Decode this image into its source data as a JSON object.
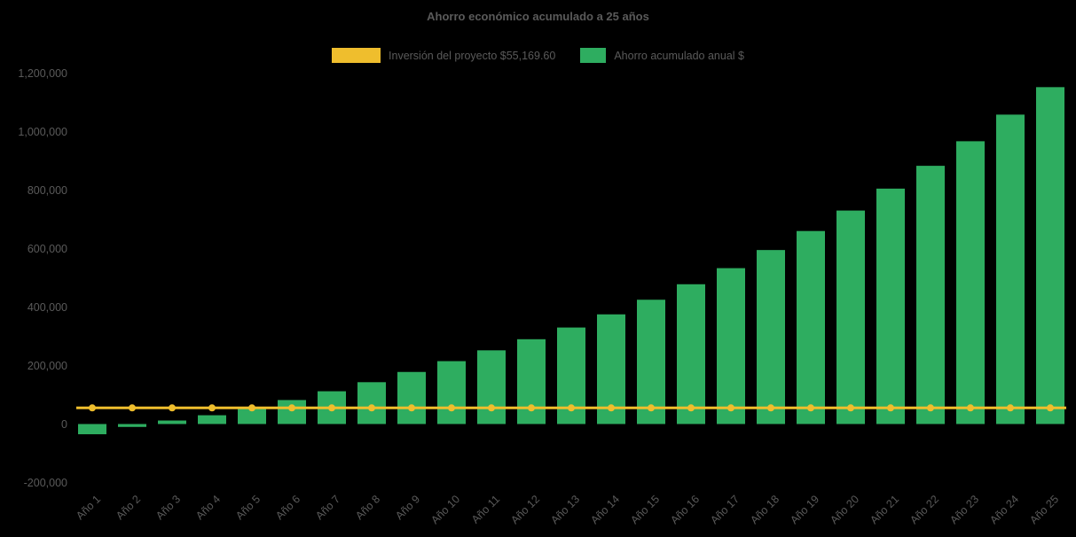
{
  "page": {
    "background": "#000000",
    "text_color": "#5a5a5a"
  },
  "chart_data": {
    "type": "bar",
    "title": "Ahorro económico acumulado a 25 años",
    "categories": [
      "Año 1",
      "Año 2",
      "Año 3",
      "Año 4",
      "Año 5",
      "Año 6",
      "Año 7",
      "Año 8",
      "Año 9",
      "Año 10",
      "Año 11",
      "Año 12",
      "Año 13",
      "Año 14",
      "Año 15",
      "Año 16",
      "Año 17",
      "Año 18",
      "Año 19",
      "Año 20",
      "Año 21",
      "Año 22",
      "Año 23",
      "Año 24",
      "Año 25"
    ],
    "series": [
      {
        "name": "Inversión del proyecto $55,169.60",
        "type": "line",
        "color": "#EFBE2D",
        "marker": "circle",
        "constant_value": 55169.6,
        "values": [
          55169.6,
          55169.6,
          55169.6,
          55169.6,
          55169.6,
          55169.6,
          55169.6,
          55169.6,
          55169.6,
          55169.6,
          55169.6,
          55169.6,
          55169.6,
          55169.6,
          55169.6,
          55169.6,
          55169.6,
          55169.6,
          55169.6,
          55169.6,
          55169.6,
          55169.6,
          55169.6,
          55169.6,
          55169.6
        ]
      },
      {
        "name": "Ahorro acumulado anual $",
        "type": "bar",
        "color": "#2EAD60",
        "values": [
          -35000,
          -10000,
          12000,
          30000,
          55000,
          82000,
          112000,
          143000,
          178000,
          215000,
          252000,
          290000,
          330000,
          375000,
          425000,
          478000,
          533000,
          595000,
          660000,
          730000,
          805000,
          883000,
          967000,
          1058000,
          1152000
        ]
      }
    ],
    "ylim": [
      -200000,
      1200000
    ],
    "ytick_step": 200000,
    "ytick_labels": [
      "-200,000",
      "0",
      "200,000",
      "400,000",
      "600,000",
      "800,000",
      "1,000,000",
      "1,200,000"
    ],
    "grid": false,
    "legend_position": "top",
    "x_label_rotation": -45,
    "xlabel": "",
    "ylabel": ""
  }
}
